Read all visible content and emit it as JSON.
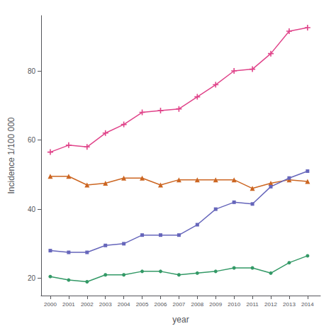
{
  "chart_data": {
    "type": "line",
    "x": [
      2000,
      2001,
      2002,
      2003,
      2004,
      2005,
      2006,
      2007,
      2008,
      2009,
      2010,
      2011,
      2012,
      2013,
      2014
    ],
    "series": [
      {
        "color": "#e0448a",
        "marker": "plus",
        "values": [
          56.5,
          58.5,
          58.0,
          62.0,
          64.5,
          68.0,
          68.5,
          69.0,
          72.5,
          76.0,
          80.0,
          80.5,
          85.0,
          91.5,
          92.5
        ]
      },
      {
        "color": "#cc6622",
        "marker": "triangle",
        "values": [
          49.5,
          49.5,
          47.0,
          47.5,
          49.0,
          49.0,
          47.0,
          48.5,
          48.5,
          48.5,
          48.5,
          46.0,
          47.5,
          48.5,
          48.0
        ]
      },
      {
        "color": "#6666bb",
        "marker": "square",
        "values": [
          28.0,
          27.5,
          27.5,
          29.5,
          30.0,
          32.5,
          32.5,
          32.5,
          35.5,
          40.0,
          42.0,
          41.5,
          46.5,
          49.0,
          51.0
        ]
      },
      {
        "color": "#339966",
        "marker": "circle",
        "values": [
          20.5,
          19.5,
          19.0,
          21.0,
          21.0,
          22.0,
          22.0,
          21.0,
          21.5,
          22.0,
          23.0,
          23.0,
          21.5,
          24.5,
          26.5
        ]
      }
    ],
    "xlabel": "year",
    "ylabel": "Incidence 1/100 000",
    "xlim": [
      1999.5,
      2014.7
    ],
    "xticks": [
      2000,
      2001,
      2002,
      2003,
      2004,
      2005,
      2006,
      2007,
      2008,
      2009,
      2010,
      2011,
      2012,
      2013,
      2014
    ],
    "ylim": [
      15,
      96
    ],
    "yticks": [
      20,
      40,
      60,
      80
    ],
    "grid": false
  }
}
